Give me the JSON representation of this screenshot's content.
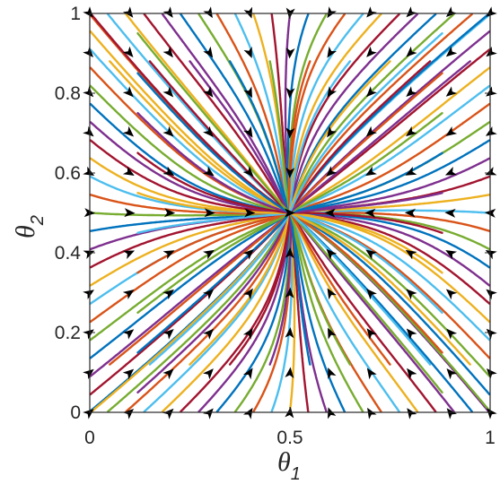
{
  "chart_data": {
    "type": "stream-plot",
    "xlim": [
      0,
      1
    ],
    "ylim": [
      0,
      1
    ],
    "xticks": [
      "0",
      "0.5",
      "1"
    ],
    "yticks": [
      "0",
      "0.2",
      "0.4",
      "0.6",
      "0.8",
      "1"
    ],
    "xlabel": {
      "symbol": "θ",
      "subscript": "1"
    },
    "ylabel": {
      "symbol": "θ",
      "subscript": "2"
    },
    "grid": false,
    "stable_point": [
      0.5,
      0.5
    ],
    "colors": {
      "line_palette": [
        "#0072BD",
        "#D95319",
        "#EDB120",
        "#7E2F8E",
        "#77AC30",
        "#4DBEEE",
        "#A2142F"
      ],
      "arrow": "#000000",
      "axis": "#262626",
      "background": "#ffffff"
    },
    "vector_field": "arrows point toward attractor at (0.5, 0.5) from all regions"
  }
}
